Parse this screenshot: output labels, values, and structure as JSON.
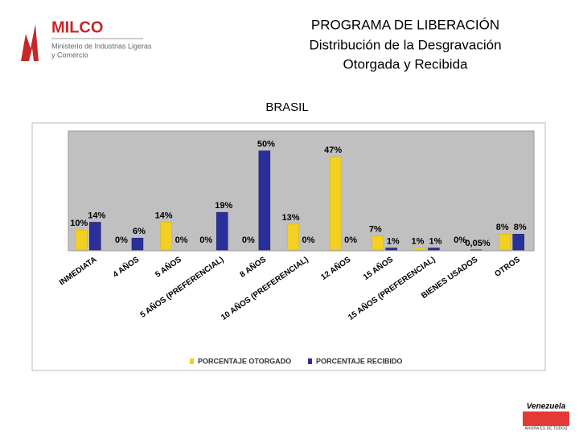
{
  "logo": {
    "name": "MILCO",
    "lines": [
      "Ministerio de Industrias Ligeras",
      "y Comercio"
    ]
  },
  "brand": {
    "name": "Venezuela",
    "tagline": "AHORA ES DE TODOS"
  },
  "chart_data": {
    "type": "bar",
    "title": "PROGRAMA DE LIBERACIÓN",
    "subtitle": [
      "Distribución de la Desgravación",
      "Otorgada y Recibida"
    ],
    "chart_title": "BRASIL",
    "categories": [
      "INMEDIATA",
      "4 AÑOS",
      "5 AÑOS",
      "5 AÑOS (PREFERENCIAL)",
      "8 AÑOS",
      "10 AÑOS (PREFERENCIAL)",
      "12 AÑOS",
      "15 AÑOS",
      "15 AÑOS (PREFERENCIAL)",
      "BIENES USADOS",
      "OTROS"
    ],
    "series": [
      {
        "name": "PORCENTAJE OTORGADO",
        "color": "#f2d024",
        "values": [
          10,
          0,
          14,
          0,
          0,
          13,
          47,
          7,
          1,
          0,
          8
        ],
        "value_labels": [
          "10%",
          "0%",
          "14%",
          "0%",
          "0%",
          "13%",
          "47%",
          "7%",
          "1%",
          "0%",
          "8%"
        ]
      },
      {
        "name": "PORCENTAJE RECIBIDO",
        "color": "#2b2f9a",
        "values": [
          14,
          6,
          0,
          19,
          50,
          0,
          0,
          1,
          1,
          0.05,
          8
        ],
        "value_labels": [
          "14%",
          "6%",
          "0%",
          "19%",
          "50%",
          "0%",
          "0%",
          "1%",
          "1%",
          "0,05%",
          "8%"
        ]
      }
    ],
    "ylim": [
      0,
      60
    ]
  }
}
